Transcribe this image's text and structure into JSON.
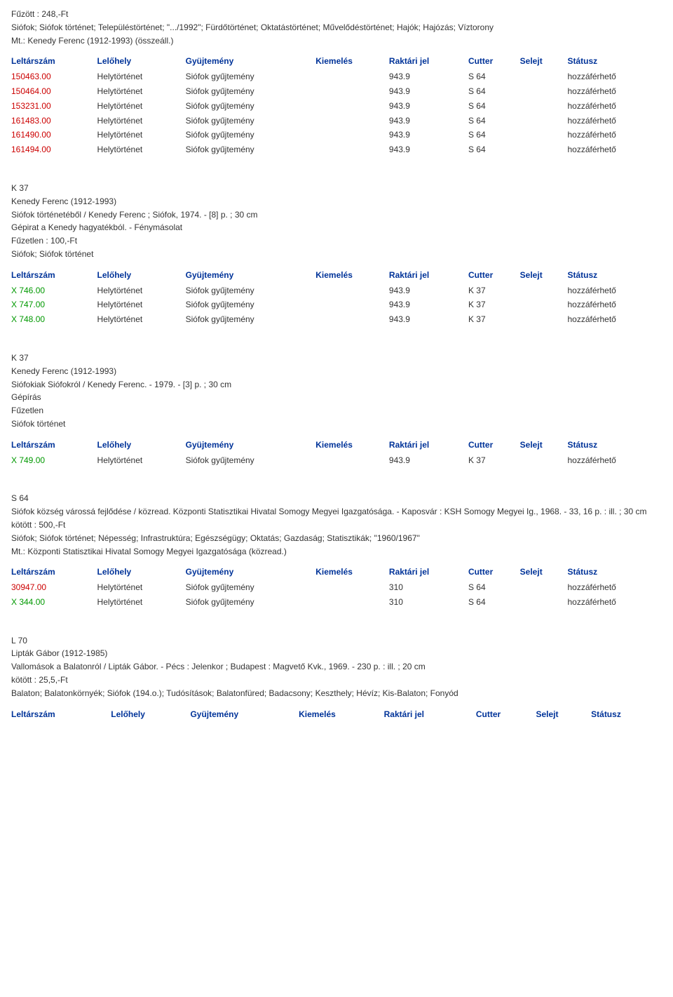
{
  "headers": {
    "leltarszam": "Leltárszám",
    "lelohely": "Lelőhely",
    "gyujtemeny": "Gyüjtemény",
    "kiemeles": "Kiemelés",
    "raktari": "Raktári jel",
    "cutter": "Cutter",
    "selejt": "Selejt",
    "statusz": "Státusz"
  },
  "common": {
    "lelohely": "Helytörténet",
    "gyujtemeny": "Siófok gyűjtemény",
    "status": "hozzáférhető"
  },
  "records": [
    {
      "text_lines": [
        "Fűzött : 248,-Ft",
        "Siófok; Siófok történet; Településtörténet; \".../1992\"; Fürdőtörténet; Oktatástörténet; Művelődéstörténet; Hajók; Hajózás; Víztorony",
        "Mt.: Kenedy Ferenc (1912-1993) (összeáll.)"
      ],
      "rows": [
        {
          "id": "150463.00",
          "color": "red",
          "raktari": "943.9",
          "cutter": "S 64"
        },
        {
          "id": "150464.00",
          "color": "red",
          "raktari": "943.9",
          "cutter": "S 64"
        },
        {
          "id": "153231.00",
          "color": "red",
          "raktari": "943.9",
          "cutter": "S 64"
        },
        {
          "id": "161483.00",
          "color": "red",
          "raktari": "943.9",
          "cutter": "S 64"
        },
        {
          "id": "161490.00",
          "color": "red",
          "raktari": "943.9",
          "cutter": "S 64"
        },
        {
          "id": "161494.00",
          "color": "red",
          "raktari": "943.9",
          "cutter": "S 64"
        }
      ]
    },
    {
      "text_lines": [
        "K 37",
        "Kenedy Ferenc (1912-1993)",
        " Siófok történetéből / Kenedy Ferenc ; Siófok, 1974. - [8] p. ; 30 cm",
        "Gépirat a Kenedy hagyatékból. - Fénymásolat",
        "Fűzetlen : 100,-Ft",
        "Siófok; Siófok történet"
      ],
      "rows": [
        {
          "id": "X 746.00",
          "color": "green",
          "raktari": "943.9",
          "cutter": "K 37"
        },
        {
          "id": "X 747.00",
          "color": "green",
          "raktari": "943.9",
          "cutter": "K 37"
        },
        {
          "id": "X 748.00",
          "color": "green",
          "raktari": "943.9",
          "cutter": "K 37"
        }
      ]
    },
    {
      "text_lines": [
        "K 37",
        "Kenedy Ferenc (1912-1993)",
        " Siófokiak Siófokról / Kenedy Ferenc. - 1979. - [3] p. ; 30 cm",
        "Gépírás",
        "Fűzetlen",
        "Siófok történet"
      ],
      "rows": [
        {
          "id": "X 749.00",
          "color": "green",
          "raktari": "943.9",
          "cutter": "K 37"
        }
      ]
    },
    {
      "text_lines": [
        "S 64",
        " Siófok község várossá fejlődése / közread. Központi Statisztikai Hivatal Somogy Megyei Igazgatósága. - Kaposvár : KSH Somogy Megyei Ig., 1968. - 33, 16 p. : ill. ; 30 cm",
        "kötött : 500,-Ft",
        "Siófok; Siófok történet; Népesség; Infrastruktúra; Egészségügy; Oktatás; Gazdaság; Statisztikák; \"1960/1967\"",
        "Mt.: Központi Statisztikai Hivatal Somogy Megyei Igazgatósága (közread.)"
      ],
      "rows": [
        {
          "id": "30947.00",
          "color": "red",
          "raktari": "310",
          "cutter": "S 64"
        },
        {
          "id": "X 344.00",
          "color": "green",
          "raktari": "310",
          "cutter": "S 64"
        }
      ]
    },
    {
      "text_lines": [
        "L 70",
        "Lipták Gábor (1912-1985)",
        " Vallomások a Balatonról / Lipták Gábor. - Pécs : Jelenkor ; Budapest : Magvető Kvk., 1969. - 230 p. : ill. ; 20 cm",
        "kötött : 25,5,-Ft",
        "Balaton; Balatonkörnyék; Siófok (194.o.); Tudósítások; Balatonfüred; Badacsony; Keszthely; Hévíz; Kis-Balaton; Fonyód"
      ],
      "rows": []
    }
  ],
  "col_widths": {
    "leltarszam": "90px",
    "lelohely": "90px",
    "gyujtemeny": "140px",
    "kiemeles_raktari": "140px",
    "cutter": "60px",
    "selejt": "50px",
    "statusz": "100px"
  }
}
